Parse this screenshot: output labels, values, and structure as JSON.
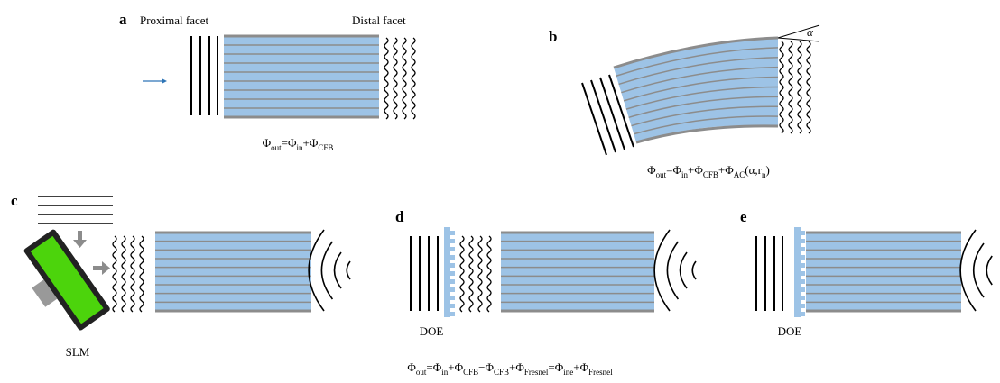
{
  "panels": [
    {
      "label": "a",
      "captions": [
        "Proximal facet",
        "Distal facet"
      ],
      "equation": [
        {
          "base": "Φ",
          "sub": "out"
        },
        "=",
        {
          "base": "Φ",
          "sub": "in"
        },
        "+",
        {
          "base": "Φ",
          "sub": "CFB"
        }
      ]
    },
    {
      "label": "b",
      "angle": "α",
      "equation": [
        {
          "base": "Φ",
          "sub": "out"
        },
        "=",
        {
          "base": "Φ",
          "sub": "in"
        },
        "+",
        {
          "base": "Φ",
          "sub": "CFB"
        },
        "+",
        {
          "base": "Φ",
          "sub": "AC"
        },
        "(α,",
        {
          "base": "r",
          "sub": "n"
        },
        ")"
      ]
    },
    {
      "label": "c",
      "captions": [
        "SLM"
      ]
    },
    {
      "label": "d",
      "captions": [
        "DOE"
      ]
    },
    {
      "label": "e",
      "captions": [
        "DOE"
      ]
    }
  ],
  "equation": [
    {
      "base": "Φ",
      "sub": "out"
    },
    "=",
    {
      "base": "Φ",
      "sub": "in"
    },
    "+",
    {
      "base": "Φ",
      "sub": "CFB"
    },
    "−",
    {
      "base": "Φ",
      "sub": "CFB"
    },
    "+",
    {
      "base": "Φ",
      "sub": "Fresnel"
    },
    "=",
    {
      "base": "Φ",
      "sub": "ine"
    },
    "+",
    {
      "base": "Φ",
      "sub": "Fresnel"
    }
  ]
}
